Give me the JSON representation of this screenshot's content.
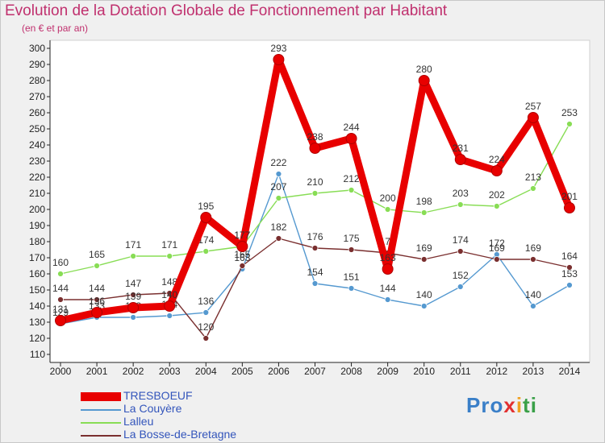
{
  "title": "Evolution de la Dotation Globale de Fonctionnement par Habitant",
  "subtitle": "(en € et par an)",
  "brand": [
    "Pro",
    "x",
    "i",
    "ti"
  ],
  "chart_data": {
    "type": "line",
    "title": "Evolution de la Dotation Globale de Fonctionnement par Habitant",
    "subtitle": "(en € et par an)",
    "x": [
      "2000",
      "2001",
      "2002",
      "2003",
      "2004",
      "2005",
      "2006",
      "2007",
      "2008",
      "2009",
      "2010",
      "2011",
      "2012",
      "2013",
      "2014"
    ],
    "ylim": [
      110,
      300
    ],
    "yticks": [
      110,
      120,
      130,
      140,
      150,
      160,
      170,
      180,
      190,
      200,
      210,
      220,
      230,
      240,
      250,
      260,
      270,
      280,
      290,
      300
    ],
    "grid": false,
    "legend_position": "bottom-left",
    "series": [
      {
        "name": "TRESBOEUF",
        "color": "#e80000",
        "values": [
          131,
          136,
          139,
          140,
          195,
          177,
          293,
          238,
          244,
          163,
          280,
          231,
          224,
          257,
          201
        ],
        "labels": [
          "131",
          "136",
          "139",
          "140",
          "195",
          "177",
          "293",
          "238",
          "244",
          "163",
          "280",
          "231",
          "224",
          "257",
          "201"
        ]
      },
      {
        "name": "La Couyère",
        "color": "#5599d0",
        "values": [
          129,
          133,
          133,
          134,
          136,
          163,
          222,
          154,
          151,
          144,
          140,
          152,
          172,
          140,
          153
        ],
        "labels": [
          "129",
          "133",
          "133",
          "134",
          "136",
          "163",
          "222",
          "154",
          "151",
          "144",
          "140",
          "152",
          "172",
          "140",
          "153"
        ]
      },
      {
        "name": "Lalleu",
        "color": "#88dd55",
        "values": [
          160,
          165,
          171,
          171,
          174,
          177,
          207,
          210,
          212,
          200,
          198,
          203,
          202,
          213,
          253
        ],
        "labels": [
          "160",
          "165",
          "171",
          "171",
          "174",
          "177",
          "207",
          "210",
          "212",
          "200",
          "198",
          "203",
          "202",
          "213",
          "253"
        ]
      },
      {
        "name": "La Bosse-de-Bretagne",
        "color": "#7a2f2f",
        "values": [
          144,
          144,
          147,
          148,
          120,
          165,
          182,
          176,
          175,
          173,
          169,
          174,
          169,
          169,
          164
        ],
        "labels": [
          "144",
          "144",
          "147",
          "148",
          "120",
          "165",
          "182",
          "176",
          "175",
          "173",
          "169",
          "174",
          "169",
          "169",
          "164"
        ]
      }
    ]
  }
}
